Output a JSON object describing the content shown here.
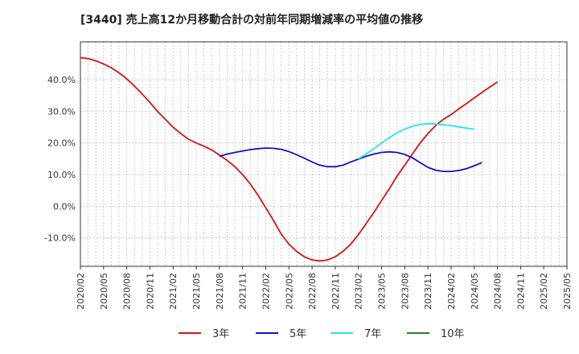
{
  "chart_data": {
    "type": "line",
    "title": "[3440]  売上高12か月移動合計の対前年同期増減率の平均値の推移",
    "xlabel": "",
    "ylabel": "",
    "ylim": [
      -19,
      52
    ],
    "y_ticks": [
      "40.0%",
      "30.0%",
      "20.0%",
      "10.0%",
      "0.0%",
      "-10.0%"
    ],
    "y_tick_values": [
      40,
      30,
      20,
      10,
      0,
      -10
    ],
    "x_ticks": [
      "2020/02",
      "2020/05",
      "2020/08",
      "2020/11",
      "2021/02",
      "2021/05",
      "2021/08",
      "2021/11",
      "2022/02",
      "2022/05",
      "2022/08",
      "2022/11",
      "2023/02",
      "2023/05",
      "2023/08",
      "2023/11",
      "2024/02",
      "2024/05",
      "2024/08",
      "2024/11",
      "2025/02",
      "2025/05"
    ],
    "grid": true,
    "legend_position": "bottom",
    "series": [
      {
        "name": "3年",
        "color": "#dd1111",
        "points": [
          [
            "2020/02",
            47.0
          ],
          [
            "2020/03",
            46.7
          ],
          [
            "2020/04",
            46.0
          ],
          [
            "2020/05",
            45.0
          ],
          [
            "2020/06",
            43.8
          ],
          [
            "2020/07",
            42.2
          ],
          [
            "2020/08",
            40.3
          ],
          [
            "2020/09",
            38.0
          ],
          [
            "2020/10",
            35.5
          ],
          [
            "2020/11",
            32.8
          ],
          [
            "2020/12",
            30.0
          ],
          [
            "2021/01",
            27.5
          ],
          [
            "2021/02",
            25.0
          ],
          [
            "2021/03",
            23.0
          ],
          [
            "2021/04",
            21.2
          ],
          [
            "2021/05",
            20.0
          ],
          [
            "2021/06",
            19.0
          ],
          [
            "2021/07",
            17.8
          ],
          [
            "2021/08",
            16.2
          ],
          [
            "2021/09",
            14.5
          ],
          [
            "2021/10",
            12.5
          ],
          [
            "2021/11",
            10.0
          ],
          [
            "2021/12",
            7.0
          ],
          [
            "2022/01",
            3.5
          ],
          [
            "2022/02",
            -0.5
          ],
          [
            "2022/03",
            -4.5
          ],
          [
            "2022/04",
            -8.8
          ],
          [
            "2022/05",
            -12.0
          ],
          [
            "2022/06",
            -14.3
          ],
          [
            "2022/07",
            -16.0
          ],
          [
            "2022/08",
            -17.0
          ],
          [
            "2022/09",
            -17.3
          ],
          [
            "2022/10",
            -17.0
          ],
          [
            "2022/11",
            -16.0
          ],
          [
            "2022/12",
            -14.3
          ],
          [
            "2023/01",
            -12.0
          ],
          [
            "2023/02",
            -9.0
          ],
          [
            "2023/03",
            -5.5
          ],
          [
            "2023/04",
            -2.0
          ],
          [
            "2023/05",
            1.8
          ],
          [
            "2023/06",
            5.5
          ],
          [
            "2023/07",
            9.5
          ],
          [
            "2023/08",
            13.0
          ],
          [
            "2023/09",
            16.5
          ],
          [
            "2023/10",
            20.0
          ],
          [
            "2023/11",
            23.0
          ],
          [
            "2023/12",
            25.5
          ],
          [
            "2024/01",
            27.5
          ],
          [
            "2024/02",
            29.0
          ],
          [
            "2024/03",
            30.8
          ],
          [
            "2024/04",
            32.5
          ],
          [
            "2024/05",
            34.3
          ],
          [
            "2024/06",
            36.0
          ],
          [
            "2024/07",
            37.7
          ],
          [
            "2024/08",
            39.3
          ]
        ]
      },
      {
        "name": "5年",
        "color": "#1111cc",
        "points": [
          [
            "2021/08",
            15.8
          ],
          [
            "2021/09",
            16.5
          ],
          [
            "2021/10",
            17.0
          ],
          [
            "2021/11",
            17.5
          ],
          [
            "2021/12",
            17.9
          ],
          [
            "2022/01",
            18.2
          ],
          [
            "2022/02",
            18.4
          ],
          [
            "2022/03",
            18.3
          ],
          [
            "2022/04",
            18.0
          ],
          [
            "2022/05",
            17.3
          ],
          [
            "2022/06",
            16.3
          ],
          [
            "2022/07",
            15.2
          ],
          [
            "2022/08",
            14.0
          ],
          [
            "2022/09",
            13.0
          ],
          [
            "2022/10",
            12.5
          ],
          [
            "2022/11",
            12.5
          ],
          [
            "2022/12",
            13.0
          ],
          [
            "2023/01",
            14.0
          ],
          [
            "2023/02",
            14.9
          ],
          [
            "2023/03",
            15.8
          ],
          [
            "2023/04",
            16.5
          ],
          [
            "2023/05",
            17.0
          ],
          [
            "2023/06",
            17.2
          ],
          [
            "2023/07",
            17.0
          ],
          [
            "2023/08",
            16.4
          ],
          [
            "2023/09",
            15.3
          ],
          [
            "2023/10",
            13.8
          ],
          [
            "2023/11",
            12.3
          ],
          [
            "2023/12",
            11.4
          ],
          [
            "2024/01",
            11.0
          ],
          [
            "2024/02",
            11.0
          ],
          [
            "2024/03",
            11.3
          ],
          [
            "2024/04",
            11.9
          ],
          [
            "2024/05",
            12.8
          ],
          [
            "2024/06",
            13.8
          ]
        ]
      },
      {
        "name": "7年",
        "color": "#22e5ee",
        "points": [
          [
            "2023/02",
            15.0
          ],
          [
            "2023/03",
            16.5
          ],
          [
            "2023/04",
            18.2
          ],
          [
            "2023/05",
            20.0
          ],
          [
            "2023/06",
            21.7
          ],
          [
            "2023/07",
            23.2
          ],
          [
            "2023/08",
            24.4
          ],
          [
            "2023/09",
            25.3
          ],
          [
            "2023/10",
            25.9
          ],
          [
            "2023/11",
            26.1
          ],
          [
            "2023/12",
            26.0
          ],
          [
            "2024/01",
            25.8
          ],
          [
            "2024/02",
            25.5
          ],
          [
            "2024/03",
            25.1
          ],
          [
            "2024/04",
            24.7
          ],
          [
            "2024/05",
            24.4
          ]
        ]
      },
      {
        "name": "10年",
        "color": "#228822",
        "points": []
      }
    ]
  }
}
